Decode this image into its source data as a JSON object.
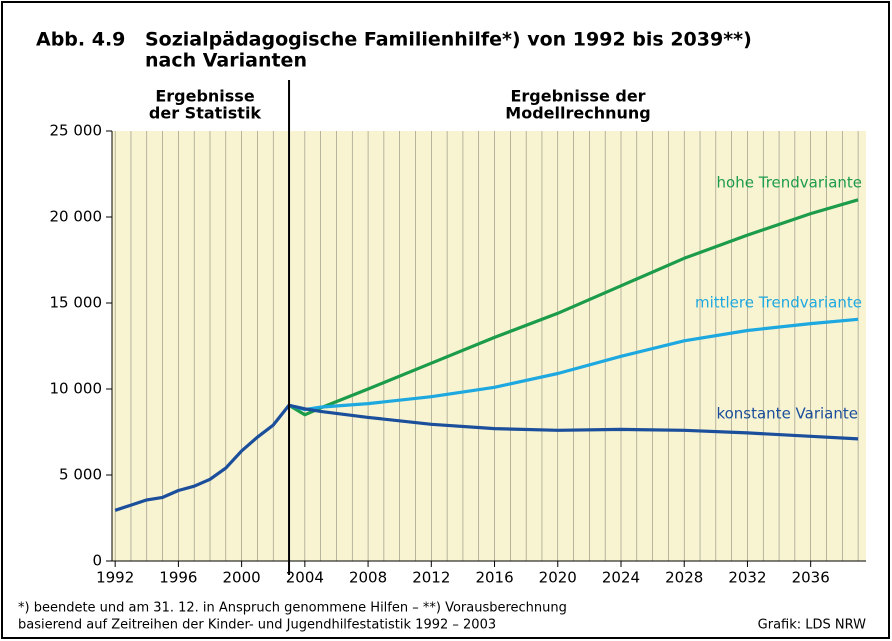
{
  "chart_data": {
    "type": "line",
    "figure_label": "Abb. 4.9",
    "title_lines": [
      "Sozialpädagogische Familienhilfe*) von 1992 bis 2039**)",
      "nach Varianten"
    ],
    "annotations": {
      "left_header": [
        "Ergebnisse",
        "der Statistik"
      ],
      "right_header": [
        "Ergebnisse der",
        "Modellrechnung"
      ]
    },
    "footnotes": [
      "*) beendete und am 31. 12. in Anspruch genommene Hilfen – **) Vorausberechnung",
      "basierend auf Zeitreihen der Kinder- und Jugendhilfestatistik 1992 – 2003"
    ],
    "source": "Grafik: LDS NRW",
    "divider_x": 2003,
    "xlim": [
      1991.8,
      2039.5
    ],
    "xticks": [
      1992,
      1996,
      2000,
      2004,
      2008,
      2012,
      2016,
      2020,
      2024,
      2028,
      2032,
      2036
    ],
    "ylim": [
      0,
      25000
    ],
    "yticks": [
      0,
      {
        "value": 5000,
        "label": "5 000"
      },
      {
        "value": 10000,
        "label": "10 000"
      },
      {
        "value": 15000,
        "label": "15 000"
      },
      {
        "value": 20000,
        "label": "20 000"
      },
      {
        "value": 25000,
        "label": "25 000"
      }
    ],
    "background": "#f8f4d2",
    "series": [
      {
        "name": "hohe Trendvariante",
        "color": "#1c9c4a",
        "x": [
          2003,
          2004,
          2005,
          2008,
          2012,
          2016,
          2020,
          2024,
          2028,
          2032,
          2036,
          2039
        ],
        "values": [
          9050,
          8500,
          8900,
          10000,
          11500,
          13000,
          14400,
          16000,
          17600,
          18950,
          20200,
          21000
        ]
      },
      {
        "name": "mittlere Trendvariante",
        "color": "#1ea8e0",
        "x": [
          2003,
          2004,
          2005,
          2008,
          2012,
          2016,
          2020,
          2024,
          2028,
          2032,
          2036,
          2039
        ],
        "values": [
          9050,
          8800,
          8950,
          9150,
          9550,
          10100,
          10900,
          11900,
          12800,
          13400,
          13800,
          14050
        ]
      },
      {
        "name": "konstante Variante",
        "color": "#1b4e9b",
        "x": [
          1992,
          1993,
          1994,
          1995,
          1996,
          1997,
          1998,
          1999,
          2000,
          2001,
          2002,
          2003,
          2004,
          2005,
          2008,
          2012,
          2016,
          2020,
          2024,
          2028,
          2032,
          2036,
          2039
        ],
        "values": [
          2950,
          3250,
          3550,
          3700,
          4100,
          4350,
          4750,
          5400,
          6400,
          7200,
          7900,
          9050,
          8850,
          8700,
          8350,
          7950,
          7700,
          7600,
          7650,
          7600,
          7450,
          7250,
          7100
        ]
      }
    ]
  }
}
